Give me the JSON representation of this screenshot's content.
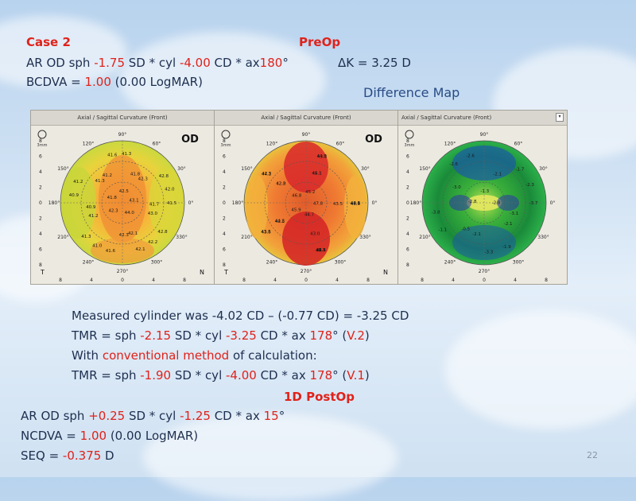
{
  "header": {
    "case": "Case 2",
    "preop": "PreOp",
    "ar_prefix": "AR OD sph ",
    "ar_sph": "-1.75",
    "ar_mid1": " SD * cyl ",
    "ar_cyl": "-4.00",
    "ar_mid2": " CD * ax",
    "ar_ax": "180",
    "ar_deg": "°",
    "dk_label": "ΔK = 3.25 D",
    "bcdva_prefix": "BCDVA  = ",
    "bcdva_val": "1.00",
    "bcdva_suffix": " (0.00 LogMAR)",
    "diff_map": "Difference Map"
  },
  "maps": {
    "title": "Axial / Sagittal Curvature (Front)",
    "od": "OD",
    "temporal": "T",
    "nasal": "N",
    "mm_icon_label": "3mm",
    "tick_labels_y": [
      "8",
      "6",
      "4",
      "2",
      "0",
      "2",
      "4",
      "6",
      "8"
    ],
    "tick_labels_x": [
      "8",
      "4",
      "0",
      "4",
      "8"
    ],
    "angles": [
      "90°",
      "120°",
      "60°",
      "150°",
      "30°",
      "180°",
      "0°",
      "210°",
      "330°",
      "240°",
      "300°",
      "270°"
    ],
    "map1_values": [
      "41.5",
      "42.1",
      "41.3",
      "41.2",
      "41.3",
      "42.0",
      "42.2",
      "41.0",
      "40.9",
      "41.6",
      "42.8",
      "42.8",
      "41.6",
      "40.9",
      "41.2",
      "42.3",
      "43.0",
      "42.3",
      "41.2",
      "41.3",
      "41.8",
      "41.7",
      "42.1",
      "42.3",
      "41.8",
      "42.5",
      "43.1",
      "44.0"
    ],
    "map2_values": [
      "44.5",
      "44.1",
      "43.5",
      "44.2",
      "44.8",
      "43.4",
      "45.4",
      "43.8",
      "42.5",
      "43.3",
      "44.9",
      "44.7",
      "42.5",
      "42.3",
      "44.1",
      "43.5",
      "43.0",
      "44.2",
      "42.8",
      "45.1",
      "47.8",
      "44.7",
      "45.9",
      "46.8",
      "45.2"
    ],
    "map3_values": [
      "-3.7",
      "-3.3",
      "-3.8",
      "-2.6",
      "-2.3",
      "-1.9",
      "-1.1",
      "-2.6",
      "-1.7",
      "-2.1",
      "-0.5",
      "-3.0",
      "-2.1",
      "-3.1",
      "-2.1",
      "-2.8",
      "-1.3",
      "-2.0"
    ]
  },
  "body": {
    "l1_prefix": "Measured cylinder was -4.02 CD – (-0.77 CD) = -3.25 CD",
    "l2_a": "TMR = sph ",
    "l2_sph": "-2.15",
    "l2_b": " SD * cyl ",
    "l2_cyl": "-3.25",
    "l2_c": " CD * ax ",
    "l2_ax": "178",
    "l2_d": "° (",
    "l2_v": "V.2",
    "l2_e": ")",
    "l3_a": "With ",
    "l3_red": "conventional method",
    "l3_b": " of calculation:",
    "l4_a": "TMR = sph ",
    "l4_sph": "-1.90",
    "l4_b": " SD * cyl ",
    "l4_cyl": "-4.00",
    "l4_c": " CD * ax ",
    "l4_ax": "178",
    "l4_d": "° (",
    "l4_v": "V.1",
    "l4_e": ")"
  },
  "postop": {
    "title": "1D PostOp",
    "ar_a": "AR OD sph ",
    "ar_sph": "+0.25",
    "ar_b": " SD * cyl ",
    "ar_cyl": "-1.25",
    "ar_c": " CD * ax ",
    "ar_ax": "15",
    "ar_d": "°",
    "ncdva_a": "NCDVA = ",
    "ncdva_val": "1.00",
    "ncdva_b": " (0.00 LogMAR)",
    "seq_a": "SEQ = ",
    "seq_val": "-0.375",
    "seq_b": " D"
  },
  "page_number": "22"
}
